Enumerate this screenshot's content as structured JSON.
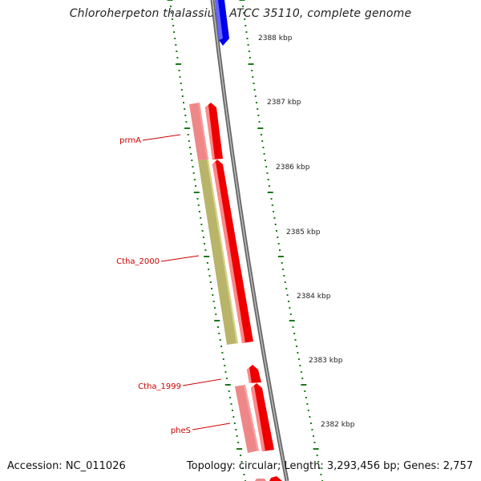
{
  "title": "Chloroherpeton thalassium ATCC 35110, complete genome",
  "footer": {
    "accession": "Accession: NC_011026",
    "topology": "Topology: circular; Length: 3,293,456 bp; Genes: 2,757"
  },
  "scale": {
    "unit": "kbp",
    "labels": [
      "2388 kbp",
      "2387 kbp",
      "2386 kbp",
      "2385 kbp",
      "2384 kbp",
      "2383 kbp",
      "2382 kbp"
    ]
  },
  "genes": [
    {
      "label": "prmA",
      "color": "#ee8888"
    },
    {
      "label": "Ctha_2000",
      "color": "#b8b46a"
    },
    {
      "label": "Ctha_1999",
      "color": "#ee0000"
    },
    {
      "label": "pheS",
      "color": "#ee8888"
    }
  ],
  "colors": {
    "backbone": "#888888",
    "forward": "#ee0000",
    "reverse": "#0000ee",
    "tick": "#1a7a1a",
    "label": "#cc0000"
  }
}
